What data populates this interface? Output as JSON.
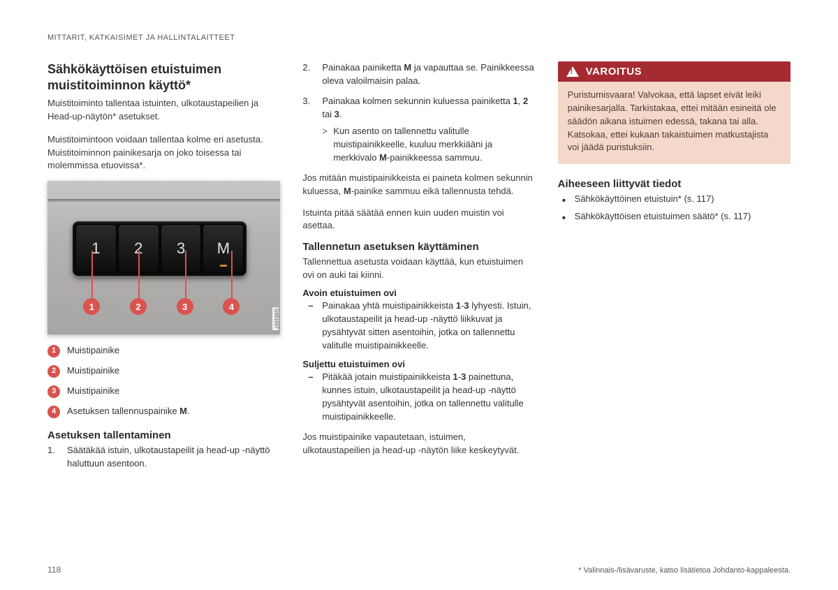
{
  "chapter": "MITTARIT, KATKAISIMET JA HALLINTALAITTEET",
  "page_number": "118",
  "footnote": "* Valinnais-/lisävaruste, katso lisätietoa Johdanto-kappaleesta.",
  "col1": {
    "title": "Sähkökäyttöisen etuistuimen muistitoiminnon käyttö*",
    "intro": "Muistitoiminto tallentaa istuinten, ulkotaustapeilien ja Head-up-näytön* asetukset.",
    "p1": "Muistitoimintoon voidaan tallentaa kolme eri asetusta. Muistitoiminnon painikesarja on joko toisessa tai molemmissa etuovissa*.",
    "buttons": [
      "1",
      "2",
      "3",
      "M"
    ],
    "img_code": "G051697",
    "callouts": [
      {
        "n": "1",
        "left_pct": 19
      },
      {
        "n": "2",
        "left_pct": 39
      },
      {
        "n": "3",
        "left_pct": 59
      },
      {
        "n": "4",
        "left_pct": 79
      }
    ],
    "legend": [
      {
        "n": "1",
        "text": "Muistipainike"
      },
      {
        "n": "2",
        "text": "Muistipainike"
      },
      {
        "n": "3",
        "text": "Muistipainike"
      },
      {
        "n": "4",
        "text_html": "Asetuksen tallennuspainike <b>M</b>."
      }
    ],
    "save_title": "Asetuksen tallentaminen",
    "save_step1": "Säätäkää istuin, ulkotaustapeilit ja head-up -näyttö haluttuun asentoon."
  },
  "col2": {
    "step2_html": "Painakaa painiketta <b>M</b> ja vapauttaa se. Painikkeessa oleva valoilmaisin palaa.",
    "step3_html": "Painakaa kolmen sekunnin kuluessa painiketta <b>1</b>, <b>2</b> tai <b>3</b>.",
    "step3_note_html": "Kun asento on tallennettu valitulle muistipainikkeelle, kuuluu merkkiääni ja merkkivalo <b>M</b>-painikkeessa sammuu.",
    "p_after_html": "Jos mitään muistipainikkeista ei paineta kolmen sekunnin kuluessa, <b>M</b>-painike sammuu eikä tallennusta tehdä.",
    "p_after2": "Istuinta pitää säätää ennen kuin uuden muistin voi asettaa.",
    "use_title": "Tallennetun asetuksen käyttäminen",
    "use_intro": "Tallennettua asetusta voidaan käyttää, kun etuistuimen ovi on auki tai kiinni.",
    "open_title": "Avoin etuistuimen ovi",
    "open_item_html": "Painakaa yhtä muistipainikkeista <b>1</b>-<b>3</b> lyhyesti. Istuin, ulkotaustapeilit ja head-up -näyttö liikkuvat ja pysähtyvät sitten asentoihin, jotka on tallennettu valitulle muistipainikkeelle.",
    "closed_title": "Suljettu etuistuimen ovi",
    "closed_item_html": "Pitäkää jotain muistipainikkeista <b>1</b>-<b>3</b> painettuna, kunnes istuin, ulkotaustapeilit ja head-up -näyttö pysähtyvät asentoihin, jotka on tallennettu valitulle muistipainikkeelle.",
    "p_last": "Jos muistipainike vapautetaan, istuimen, ulkotaustapeilien ja head-up -näytön liike keskeytyvät."
  },
  "col3": {
    "warn_title": "VAROITUS",
    "warn_body": "Puristumisvaara! Valvokaa, että lapset eivät leiki painikesarjalla. Tarkistakaa, ettei mitään esineitä ole säädön aikana istuimen edessä, takana tai alla. Katsokaa, ettei kukaan takaistuimen matkustajista voi jäädä puristuksiin.",
    "related_title": "Aiheeseen liittyvät tiedot",
    "related": [
      "Sähkökäyttöinen etuistuin* (s. 117)",
      "Sähkökäyttöisen etuistuimen säätö* (s. 117)"
    ]
  },
  "styling": {
    "warn_header_bg": "#a62a32",
    "warn_body_bg": "#f4d9cb",
    "callout_color": "#d9534f"
  }
}
